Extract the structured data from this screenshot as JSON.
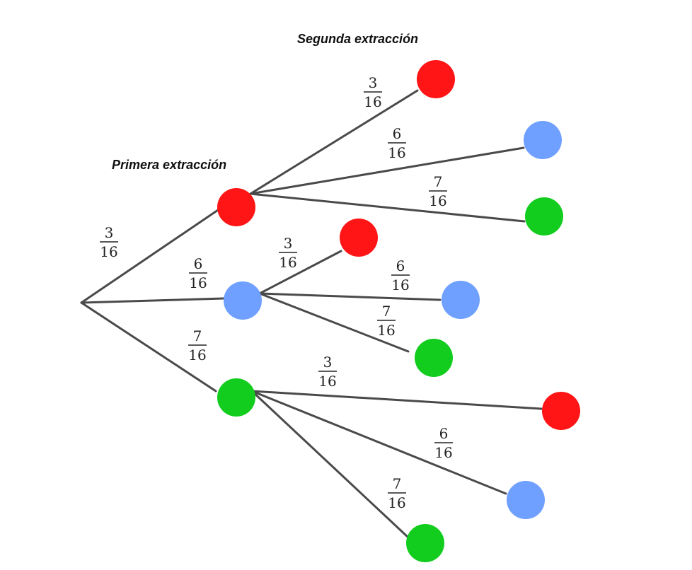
{
  "titles": {
    "first": "Primera extracción",
    "second": "Segunda extracción"
  },
  "colors": {
    "red": "#ff1515",
    "blue": "#6fa0ff",
    "green": "#12cc1e"
  },
  "first_draw": [
    {
      "color": "red",
      "prob": {
        "num": "3",
        "den": "16"
      },
      "second_draw": [
        {
          "color": "red",
          "prob": {
            "num": "3",
            "den": "16"
          }
        },
        {
          "color": "blue",
          "prob": {
            "num": "6",
            "den": "16"
          }
        },
        {
          "color": "green",
          "prob": {
            "num": "7",
            "den": "16"
          }
        }
      ]
    },
    {
      "color": "blue",
      "prob": {
        "num": "6",
        "den": "16"
      },
      "second_draw": [
        {
          "color": "red",
          "prob": {
            "num": "3",
            "den": "16"
          }
        },
        {
          "color": "blue",
          "prob": {
            "num": "6",
            "den": "16"
          }
        },
        {
          "color": "green",
          "prob": {
            "num": "7",
            "den": "16"
          }
        }
      ]
    },
    {
      "color": "green",
      "prob": {
        "num": "7",
        "den": "16"
      },
      "second_draw": [
        {
          "color": "red",
          "prob": {
            "num": "3",
            "den": "16"
          }
        },
        {
          "color": "blue",
          "prob": {
            "num": "6",
            "den": "16"
          }
        },
        {
          "color": "green",
          "prob": {
            "num": "7",
            "den": "16"
          }
        }
      ]
    }
  ]
}
